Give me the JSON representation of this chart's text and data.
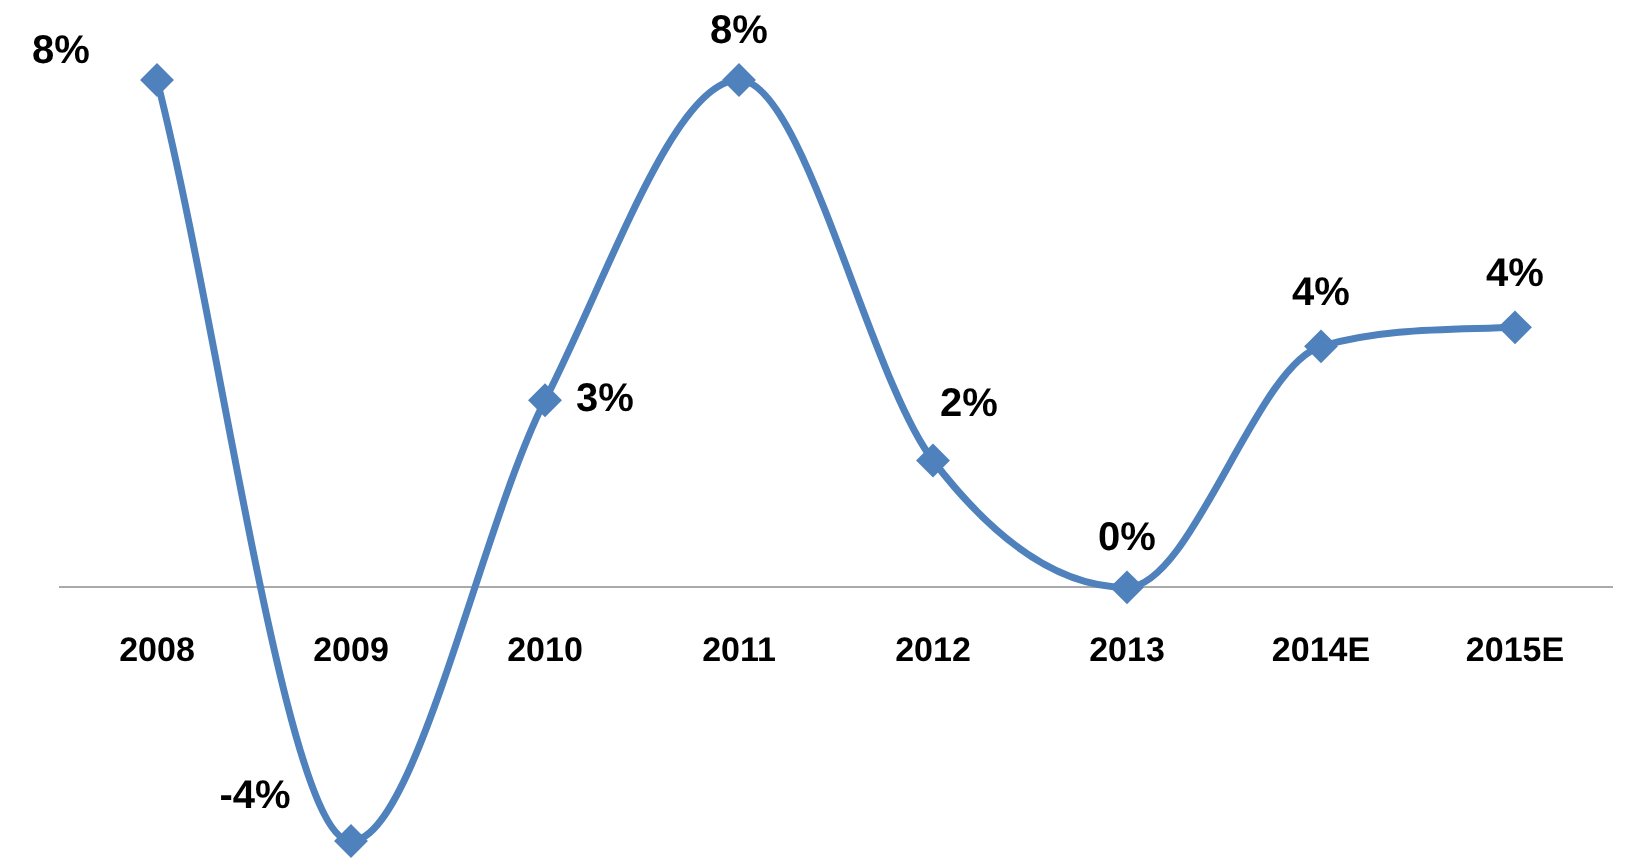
{
  "chart_data": {
    "type": "line",
    "categories": [
      "2008",
      "2009",
      "2010",
      "2011",
      "2012",
      "2013",
      "2014E",
      "2015E"
    ],
    "series": [
      {
        "color": "#4f81bd",
        "values": [
          8,
          -4,
          2.95,
          8,
          2,
          0,
          3.8,
          4.1
        ],
        "value_labels": [
          "8%",
          "-4%",
          "3%",
          "8%",
          "2%",
          "0%",
          "4%",
          "4%"
        ]
      }
    ],
    "tick_labels": "x",
    "marker": "diamond",
    "line_style": "solid",
    "grid": false,
    "legend": false
  }
}
